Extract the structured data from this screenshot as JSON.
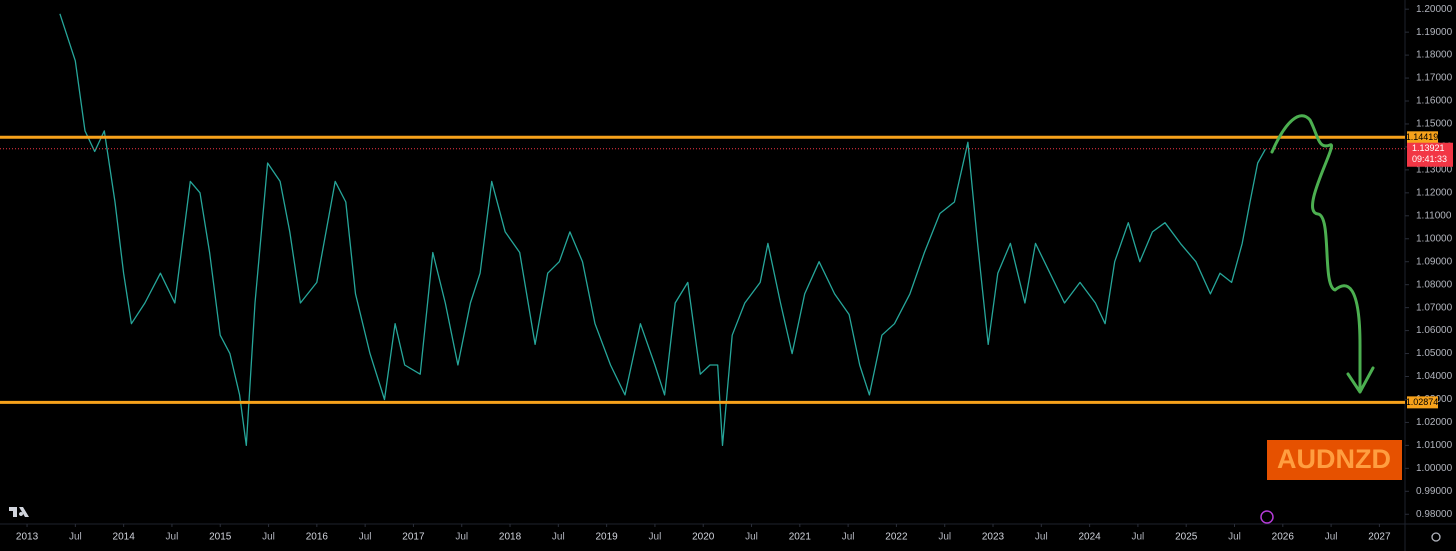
{
  "chart_data": {
    "type": "line",
    "symbol_label": "AUDNZD",
    "x": [
      2013.34,
      2013.5,
      2013.6,
      2013.7,
      2013.8,
      2013.91,
      2014.0,
      2014.08,
      2014.22,
      2014.38,
      2014.53,
      2014.69,
      2014.79,
      2014.89,
      2015.0,
      2015.1,
      2015.2,
      2015.27,
      2015.36,
      2015.49,
      2015.62,
      2015.72,
      2015.83,
      2016.0,
      2016.19,
      2016.3,
      2016.4,
      2016.55,
      2016.7,
      2016.81,
      2016.91,
      2017.07,
      2017.2,
      2017.33,
      2017.46,
      2017.59,
      2017.69,
      2017.81,
      2017.95,
      2018.1,
      2018.26,
      2018.39,
      2018.51,
      2018.62,
      2018.75,
      2018.88,
      2019.04,
      2019.19,
      2019.35,
      2019.5,
      2019.6,
      2019.71,
      2019.84,
      2019.97,
      2020.07,
      2020.15,
      2020.2,
      2020.3,
      2020.43,
      2020.59,
      2020.67,
      2020.8,
      2020.92,
      2021.05,
      2021.2,
      2021.36,
      2021.51,
      2021.62,
      2021.72,
      2021.85,
      2021.98,
      2022.14,
      2022.29,
      2022.45,
      2022.6,
      2022.74,
      2022.84,
      2022.95,
      2023.05,
      2023.18,
      2023.33,
      2023.44,
      2023.59,
      2023.74,
      2023.9,
      2024.06,
      2024.16,
      2024.26,
      2024.4,
      2024.52,
      2024.65,
      2024.78,
      2024.94,
      2025.1,
      2025.25,
      2025.35,
      2025.47,
      2025.58,
      2025.66,
      2025.74,
      2025.82
    ],
    "series": [
      {
        "color": "#26a69a",
        "values": [
          1.198,
          1.1775,
          1.147,
          1.138,
          1.147,
          1.116,
          1.085,
          1.063,
          1.072,
          1.085,
          1.072,
          1.125,
          1.12,
          1.094,
          1.058,
          1.05,
          1.032,
          1.01,
          1.072,
          1.133,
          1.125,
          1.103,
          1.072,
          1.081,
          1.125,
          1.116,
          1.076,
          1.05,
          1.03,
          1.063,
          1.045,
          1.041,
          1.094,
          1.072,
          1.045,
          1.072,
          1.085,
          1.125,
          1.103,
          1.094,
          1.054,
          1.085,
          1.09,
          1.103,
          1.09,
          1.063,
          1.045,
          1.032,
          1.063,
          1.045,
          1.032,
          1.072,
          1.081,
          1.041,
          1.045,
          1.045,
          1.01,
          1.058,
          1.072,
          1.081,
          1.098,
          1.072,
          1.05,
          1.076,
          1.09,
          1.076,
          1.067,
          1.045,
          1.032,
          1.058,
          1.063,
          1.076,
          1.094,
          1.111,
          1.116,
          1.142,
          1.098,
          1.054,
          1.085,
          1.098,
          1.072,
          1.098,
          1.085,
          1.072,
          1.081,
          1.072,
          1.063,
          1.09,
          1.107,
          1.09,
          1.103,
          1.107,
          1.098,
          1.09,
          1.076,
          1.085,
          1.081,
          1.098,
          1.116,
          1.133,
          1.139
        ]
      }
    ],
    "levels": [
      1.14419,
      1.02874
    ],
    "level_color": "#f7a21b",
    "last_price": 1.13921,
    "countdown": "09:41:33",
    "last_price_color": "#f23645",
    "xlim": [
      2012.72,
      2027.265
    ],
    "ylim": [
      0.9775,
      1.204
    ],
    "xticks": [
      2013,
      {
        "value": 2013.5,
        "label": "Jul"
      },
      2014,
      {
        "value": 2014.5,
        "label": "Jul"
      },
      2015,
      {
        "value": 2015.5,
        "label": "Jul"
      },
      2016,
      {
        "value": 2016.5,
        "label": "Jul"
      },
      2017,
      {
        "value": 2017.5,
        "label": "Jul"
      },
      2018,
      {
        "value": 2018.5,
        "label": "Jul"
      },
      2019,
      {
        "value": 2019.5,
        "label": "Jul"
      },
      2020,
      {
        "value": 2020.5,
        "label": "Jul"
      },
      2021,
      {
        "value": 2021.5,
        "label": "Jul"
      },
      2022,
      {
        "value": 2022.5,
        "label": "Jul"
      },
      2023,
      {
        "value": 2023.5,
        "label": "Jul"
      },
      2024,
      {
        "value": 2024.5,
        "label": "Jul"
      },
      2025,
      {
        "value": 2025.5,
        "label": "Jul"
      },
      2026,
      {
        "value": 2026.5,
        "label": "Jul"
      },
      2027
    ],
    "yticks": [
      {
        "value": 0.98,
        "label": "0.98000"
      },
      {
        "value": 0.99,
        "label": "0.99000"
      },
      {
        "value": 1.0,
        "label": "1.00000"
      },
      {
        "value": 1.01,
        "label": "1.01000"
      },
      {
        "value": 1.02,
        "label": "1.02000"
      },
      {
        "value": 1.03,
        "label": "1.03000"
      },
      {
        "value": 1.04,
        "label": "1.04000"
      },
      {
        "value": 1.05,
        "label": "1.05000"
      },
      {
        "value": 1.06,
        "label": "1.06000"
      },
      {
        "value": 1.07,
        "label": "1.07000"
      },
      {
        "value": 1.08,
        "label": "1.08000"
      },
      {
        "value": 1.09,
        "label": "1.09000"
      },
      {
        "value": 1.1,
        "label": "1.10000"
      },
      {
        "value": 1.11,
        "label": "1.11000"
      },
      {
        "value": 1.12,
        "label": "1.12000"
      },
      {
        "value": 1.13,
        "label": "1.13000"
      },
      {
        "value": 1.14,
        "label": "1.14000"
      },
      {
        "value": 1.15,
        "label": "1.15000"
      },
      {
        "value": 1.16,
        "label": "1.16000"
      },
      {
        "value": 1.17,
        "label": "1.17000"
      },
      {
        "value": 1.18,
        "label": "1.18000"
      },
      {
        "value": 1.19,
        "label": "1.19000"
      },
      {
        "value": 1.2,
        "label": "1.20000"
      }
    ]
  }
}
